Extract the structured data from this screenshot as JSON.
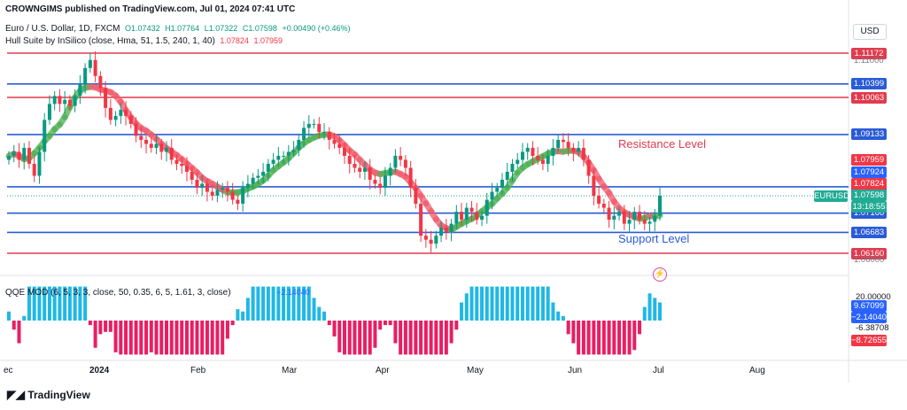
{
  "header": {
    "published": "CROWNGIMS published on TradingView.com, Jul 01, 2024 07:41 UTC",
    "symbol": "Euro / U.S. Dollar, 1D, FXCM",
    "o": "O1.07432",
    "h": "H1.07764",
    "l": "L1.07322",
    "c": "C1.07598",
    "chg": "+0.00490 (+0.46%)",
    "hull_label": "Hull Suite by InSilico (close, Hma, 51, 1.5, 240, 1, 40)",
    "hull_v1": "1.07824",
    "hull_v2": "1.07959",
    "qqe_label": "QQE MOD (6, 5, 3, 3, close, 50, 0.35, 6, 5, 1.61, 3, close)",
    "qqe_value": "−2.14040"
  },
  "currency": "USD",
  "brand": "TradingView",
  "chart_data": {
    "type": "candlestick",
    "symbol": "EURUSD",
    "x_ticks": [
      "ec",
      "2024",
      "Feb",
      "Mar",
      "Apr",
      "May",
      "Jun",
      "Jul",
      "Aug"
    ],
    "price_ticks": [
      "1.11000",
      "1.06000"
    ],
    "price_levels": [
      {
        "value": 1.11172,
        "label": "1.11172",
        "color": "#e03b4e"
      },
      {
        "value": 1.10399,
        "label": "1.10399",
        "color": "#2a5bd7"
      },
      {
        "value": 1.10063,
        "label": "1.10063",
        "color": "#e03b4e"
      },
      {
        "value": 1.09133,
        "label": "1.09133",
        "color": "#2a5bd7"
      },
      {
        "value": 1.07824,
        "label": "1.07824",
        "color": "#2a5bd7"
      },
      {
        "value": 1.07166,
        "label": "1.07166",
        "color": "#2a5bd7"
      },
      {
        "value": 1.06683,
        "label": "1.06683",
        "color": "#2a5bd7"
      },
      {
        "value": 1.0616,
        "label": "1.06160",
        "color": "#e03b4e"
      }
    ],
    "price_tags": [
      {
        "label": "1.07959",
        "color": "#f23645"
      },
      {
        "label": "1.07924",
        "color": "#2962ff"
      },
      {
        "label": "1.07824",
        "color": "#f23645"
      },
      {
        "label": "1.07598",
        "color": "#22ab94"
      },
      {
        "label": "13:18:55",
        "color": "#22ab94"
      }
    ],
    "current_symbol_tag": "EURUSD",
    "annotations": {
      "resistance": "Resistance Level",
      "support": "Support Level"
    },
    "closes": [
      1.086,
      1.087,
      1.085,
      1.088,
      1.084,
      1.081,
      1.087,
      1.095,
      1.099,
      1.101,
      1.099,
      1.1,
      1.0985,
      1.101,
      1.104,
      1.108,
      1.11,
      1.106,
      1.103,
      1.098,
      1.095,
      1.096,
      1.0975,
      1.096,
      1.094,
      1.091,
      1.09,
      1.089,
      1.088,
      1.089,
      1.087,
      1.088,
      1.085,
      1.084,
      1.0835,
      1.082,
      1.08,
      1.078,
      1.079,
      1.077,
      1.076,
      1.0775,
      1.078,
      1.077,
      1.075,
      1.074,
      1.078,
      1.079,
      1.0805,
      1.081,
      1.082,
      1.084,
      1.085,
      1.086,
      1.086,
      1.087,
      1.0875,
      1.09,
      1.093,
      1.094,
      1.094,
      1.092,
      1.092,
      1.09,
      1.089,
      1.088,
      1.086,
      1.084,
      1.083,
      1.082,
      1.083,
      1.08,
      1.079,
      1.078,
      1.081,
      1.083,
      1.086,
      1.085,
      1.083,
      1.078,
      1.074,
      1.066,
      1.065,
      1.064,
      1.066,
      1.068,
      1.067,
      1.069,
      1.072,
      1.07,
      1.073,
      1.072,
      1.07,
      1.071,
      1.075,
      1.077,
      1.078,
      1.08,
      1.082,
      1.084,
      1.085,
      1.087,
      1.088,
      1.086,
      1.085,
      1.084,
      1.086,
      1.088,
      1.09,
      1.0895,
      1.088,
      1.087,
      1.088,
      1.085,
      1.081,
      1.076,
      1.074,
      1.073,
      1.07,
      1.071,
      1.072,
      1.069,
      1.07,
      1.072,
      1.07,
      1.069,
      1.0695,
      1.071,
      1.076
    ],
    "qqe_ticks": [
      "20.00000",
      "-6.38708"
    ],
    "qqe_tags": [
      {
        "label": "9.67099",
        "color": "#2962ff"
      },
      {
        "label": "−2.14040",
        "color": "#2962ff"
      },
      {
        "label": "−8.72655",
        "color": "#f23645"
      }
    ]
  }
}
